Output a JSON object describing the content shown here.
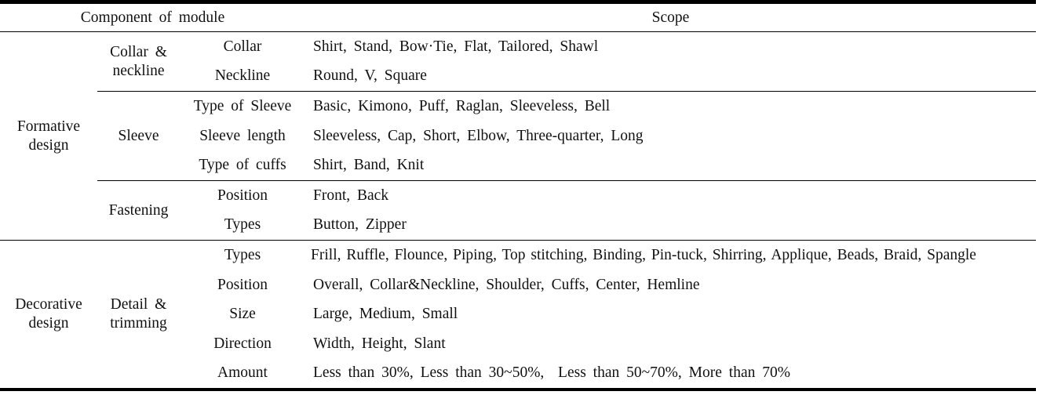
{
  "header": {
    "component": "Component of module",
    "scope": "Scope"
  },
  "groups": [
    {
      "name": "Formative design",
      "subgroups": [
        {
          "name": "Collar & neckline",
          "rows": [
            {
              "item": "Collar",
              "scope": "Shirt, Stand, Bow·Tie, Flat, Tailored, Shawl"
            },
            {
              "item": "Neckline",
              "scope": "Round, V, Square"
            }
          ]
        },
        {
          "name": "Sleeve",
          "rows": [
            {
              "item": "Type of Sleeve",
              "scope": "Basic, Kimono, Puff, Raglan, Sleeveless, Bell"
            },
            {
              "item": "Sleeve length",
              "scope": "Sleeveless, Cap, Short, Elbow, Three-quarter, Long"
            },
            {
              "item": "Type of cuffs",
              "scope": "Shirt, Band, Knit"
            }
          ]
        },
        {
          "name": "Fastening",
          "rows": [
            {
              "item": "Position",
              "scope": "Front, Back"
            },
            {
              "item": "Types",
              "scope": "Button, Zipper"
            }
          ]
        }
      ]
    },
    {
      "name": "Decorative design",
      "subgroups": [
        {
          "name": "Detail & trimming",
          "rows": [
            {
              "item": "Types",
              "scope": "Frill, Ruffle, Flounce, Piping, Top stitching, Binding, Pin-tuck, Shirring, Applique, Beads, Braid, Spangle"
            },
            {
              "item": "Position",
              "scope": "Overall, Collar&Neckline, Shoulder, Cuffs, Center, Hemline"
            },
            {
              "item": "Size",
              "scope": "Large, Medium, Small"
            },
            {
              "item": "Direction",
              "scope": "Width, Height, Slant"
            },
            {
              "item": "Amount",
              "scope": "Less than 30%, Less than 30~50%,  Less than 50~70%, More than 70%"
            }
          ]
        }
      ]
    }
  ]
}
